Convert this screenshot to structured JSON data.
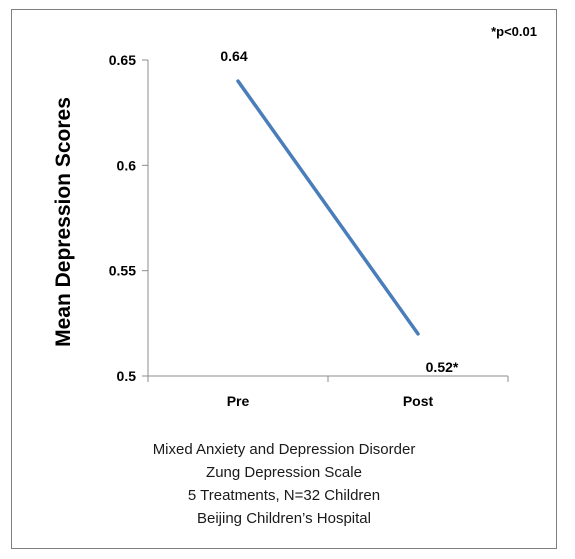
{
  "chart_data": {
    "type": "line",
    "categories": [
      "Pre",
      "Post"
    ],
    "series": [
      {
        "values": [
          0.64,
          0.52
        ],
        "data_labels": [
          "0.64",
          "0.52*"
        ],
        "color": "#4a7ebb"
      }
    ],
    "ylabel": "Mean Depression Scores",
    "xlabel": "",
    "ylim": [
      0.5,
      0.65
    ],
    "yticks": [
      0.5,
      0.55,
      0.6,
      0.65
    ],
    "ytick_labels": [
      "0.5",
      "0.55",
      "0.6",
      "0.65"
    ],
    "grid": false,
    "annotation": "*p<0.01",
    "caption_lines": [
      "Mixed Anxiety and Depression Disorder",
      "Zung Depression Scale",
      "5 Treatments, N=32 Children",
      "Beijing Children’s Hospital"
    ]
  }
}
